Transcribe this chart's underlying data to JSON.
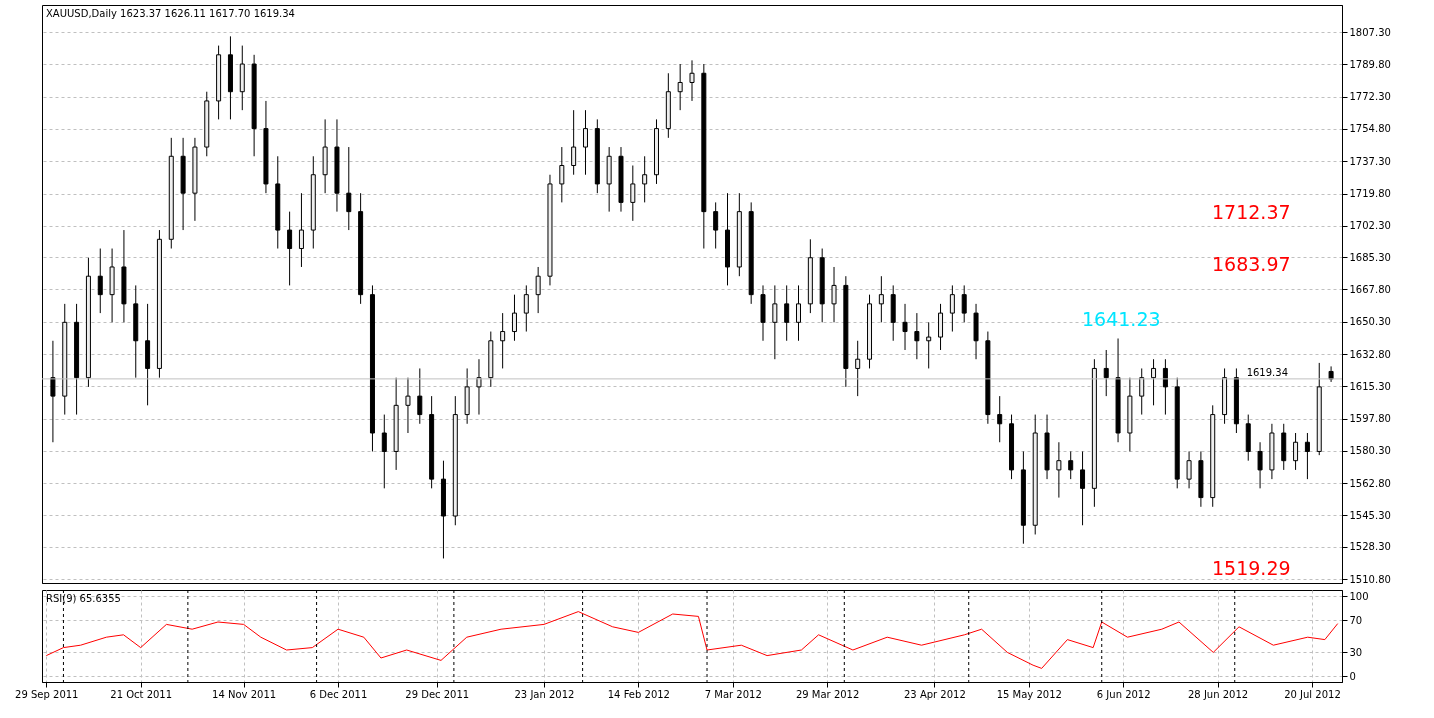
{
  "chart_data": [
    {
      "type": "candlestick",
      "title": "XAUUSD,Daily  1623.37 1626.11 1617.70 1619.34",
      "categories": [
        null,
        null,
        null,
        null,
        null,
        null,
        null,
        null,
        null,
        null,
        null,
        null,
        null,
        null,
        null,
        null,
        null,
        null,
        null,
        null,
        null,
        null,
        null,
        null,
        null,
        null,
        null,
        null,
        null,
        null,
        null,
        null,
        null,
        null,
        null,
        null,
        null,
        null,
        null,
        null,
        null,
        null,
        null,
        null,
        null,
        null,
        null,
        null,
        null,
        null,
        null,
        null,
        null,
        null,
        null,
        null,
        null,
        null,
        null,
        null,
        null,
        null,
        null,
        null,
        null,
        null,
        null,
        null,
        null,
        null,
        null,
        null,
        null,
        null,
        null,
        null,
        null,
        null,
        null,
        null,
        null,
        null,
        null,
        null,
        null,
        null,
        null,
        null,
        null,
        null,
        null,
        null,
        null,
        null,
        null,
        null,
        null,
        null,
        null,
        null,
        null,
        null,
        null,
        null,
        null,
        null,
        null,
        null,
        null
      ],
      "ohlc": [
        [
          1620,
          1640,
          1585,
          1610
        ],
        [
          1610,
          1660,
          1600,
          1650
        ],
        [
          1650,
          1660,
          1600,
          1620
        ],
        [
          1620,
          1685,
          1615,
          1675
        ],
        [
          1675,
          1690,
          1655,
          1665
        ],
        [
          1665,
          1690,
          1650,
          1680
        ],
        [
          1680,
          1700,
          1650,
          1660
        ],
        [
          1660,
          1670,
          1620,
          1640
        ],
        [
          1640,
          1660,
          1605,
          1625
        ],
        [
          1625,
          1700,
          1620,
          1695
        ],
        [
          1695,
          1750,
          1690,
          1740
        ],
        [
          1740,
          1750,
          1700,
          1720
        ],
        [
          1720,
          1750,
          1705,
          1745
        ],
        [
          1745,
          1775,
          1740,
          1770
        ],
        [
          1770,
          1800,
          1760,
          1795
        ],
        [
          1795,
          1805,
          1760,
          1775
        ],
        [
          1775,
          1800,
          1765,
          1790
        ],
        [
          1790,
          1795,
          1740,
          1755
        ],
        [
          1755,
          1770,
          1720,
          1725
        ],
        [
          1725,
          1740,
          1690,
          1700
        ],
        [
          1700,
          1710,
          1670,
          1690
        ],
        [
          1690,
          1720,
          1680,
          1700
        ],
        [
          1700,
          1740,
          1690,
          1730
        ],
        [
          1730,
          1760,
          1720,
          1745
        ],
        [
          1745,
          1760,
          1710,
          1720
        ],
        [
          1720,
          1745,
          1700,
          1710
        ],
        [
          1710,
          1720,
          1660,
          1665
        ],
        [
          1665,
          1670,
          1580,
          1590
        ],
        [
          1590,
          1600,
          1560,
          1580
        ],
        [
          1580,
          1620,
          1570,
          1605
        ],
        [
          1605,
          1620,
          1590,
          1610
        ],
        [
          1610,
          1625,
          1595,
          1600
        ],
        [
          1600,
          1610,
          1560,
          1565
        ],
        [
          1565,
          1575,
          1522,
          1545
        ],
        [
          1545,
          1610,
          1540,
          1600
        ],
        [
          1600,
          1625,
          1595,
          1615
        ],
        [
          1615,
          1630,
          1600,
          1620
        ],
        [
          1620,
          1645,
          1615,
          1640
        ],
        [
          1640,
          1655,
          1625,
          1645
        ],
        [
          1645,
          1665,
          1640,
          1655
        ],
        [
          1655,
          1670,
          1645,
          1665
        ],
        [
          1665,
          1680,
          1655,
          1675
        ],
        [
          1675,
          1730,
          1670,
          1725
        ],
        [
          1725,
          1745,
          1715,
          1735
        ],
        [
          1735,
          1765,
          1730,
          1745
        ],
        [
          1745,
          1765,
          1730,
          1755
        ],
        [
          1755,
          1760,
          1720,
          1725
        ],
        [
          1725,
          1745,
          1710,
          1740
        ],
        [
          1740,
          1745,
          1710,
          1715
        ],
        [
          1715,
          1735,
          1705,
          1725
        ],
        [
          1725,
          1740,
          1715,
          1730
        ],
        [
          1730,
          1760,
          1725,
          1755
        ],
        [
          1755,
          1785,
          1750,
          1775
        ],
        [
          1775,
          1790,
          1765,
          1780
        ],
        [
          1780,
          1792,
          1770,
          1785
        ],
        [
          1785,
          1790,
          1690,
          1710
        ],
        [
          1710,
          1715,
          1690,
          1700
        ],
        [
          1700,
          1720,
          1670,
          1680
        ],
        [
          1680,
          1720,
          1675,
          1710
        ],
        [
          1710,
          1715,
          1660,
          1665
        ],
        [
          1665,
          1670,
          1640,
          1650
        ],
        [
          1650,
          1670,
          1630,
          1660
        ],
        [
          1660,
          1670,
          1640,
          1650
        ],
        [
          1650,
          1670,
          1640,
          1660
        ],
        [
          1660,
          1695,
          1655,
          1685
        ],
        [
          1685,
          1690,
          1650,
          1660
        ],
        [
          1660,
          1680,
          1650,
          1670
        ],
        [
          1670,
          1675,
          1615,
          1625
        ],
        [
          1625,
          1640,
          1610,
          1630
        ],
        [
          1630,
          1665,
          1625,
          1660
        ],
        [
          1660,
          1675,
          1650,
          1665
        ],
        [
          1665,
          1670,
          1640,
          1650
        ],
        [
          1650,
          1660,
          1635,
          1645
        ],
        [
          1645,
          1655,
          1630,
          1640
        ],
        [
          1640,
          1650,
          1625,
          1642
        ],
        [
          1642,
          1660,
          1635,
          1655
        ],
        [
          1655,
          1670,
          1645,
          1665
        ],
        [
          1665,
          1670,
          1650,
          1655
        ],
        [
          1655,
          1660,
          1630,
          1640
        ],
        [
          1640,
          1645,
          1595,
          1600
        ],
        [
          1600,
          1610,
          1585,
          1595
        ],
        [
          1595,
          1600,
          1565,
          1570
        ],
        [
          1570,
          1580,
          1530,
          1540
        ],
        [
          1540,
          1600,
          1535,
          1590
        ],
        [
          1590,
          1600,
          1565,
          1570
        ],
        [
          1570,
          1585,
          1555,
          1575
        ],
        [
          1575,
          1580,
          1565,
          1570
        ],
        [
          1570,
          1580,
          1540,
          1560
        ],
        [
          1560,
          1630,
          1550,
          1625
        ],
        [
          1625,
          1635,
          1610,
          1620
        ],
        [
          1620,
          1641.23,
          1585,
          1590
        ],
        [
          1590,
          1620,
          1580,
          1610
        ],
        [
          1610,
          1625,
          1600,
          1620
        ],
        [
          1620,
          1630,
          1605,
          1625
        ],
        [
          1625,
          1630,
          1600,
          1615
        ],
        [
          1615,
          1620,
          1560,
          1565
        ],
        [
          1565,
          1580,
          1560,
          1575
        ],
        [
          1575,
          1580,
          1550,
          1555
        ],
        [
          1555,
          1605,
          1550,
          1600
        ],
        [
          1600,
          1625,
          1595,
          1620
        ],
        [
          1620,
          1625,
          1590,
          1595
        ],
        [
          1595,
          1600,
          1575,
          1580
        ],
        [
          1580,
          1585,
          1560,
          1570
        ],
        [
          1570,
          1595,
          1565,
          1590
        ],
        [
          1590,
          1595,
          1570,
          1575
        ],
        [
          1575,
          1590,
          1570,
          1585
        ],
        [
          1585,
          1590,
          1565,
          1580
        ],
        [
          1580,
          1628,
          1578,
          1615
        ],
        [
          1623.37,
          1626.11,
          1617.7,
          1619.34
        ]
      ],
      "ylim": [
        1508.7,
        1822
      ],
      "yticks": [
        {
          "value": 1510.8,
          "label": "1510.80"
        },
        {
          "value": 1528.3,
          "label": "1528.30"
        },
        {
          "value": 1545.3,
          "label": "1545.30"
        },
        {
          "value": 1562.8,
          "label": "1562.80"
        },
        {
          "value": 1580.3,
          "label": "1580.30"
        },
        {
          "value": 1597.8,
          "label": "1597.80"
        },
        {
          "value": 1615.3,
          "label": "1615.30"
        },
        {
          "value": 1632.8,
          "label": "1632.80"
        },
        {
          "value": 1650.3,
          "label": "1650.30"
        },
        {
          "value": 1667.8,
          "label": "1667.80"
        },
        {
          "value": 1685.3,
          "label": "1685.30"
        },
        {
          "value": 1702.3,
          "label": "1702.30"
        },
        {
          "value": 1719.8,
          "label": "1719.80"
        },
        {
          "value": 1737.3,
          "label": "1737.30"
        },
        {
          "value": 1754.8,
          "label": "1754.80"
        },
        {
          "value": 1772.3,
          "label": "1772.30"
        },
        {
          "value": 1789.8,
          "label": "1789.80"
        },
        {
          "value": 1807.3,
          "label": "1807.30"
        }
      ],
      "tick_labels": "y",
      "grid": "y",
      "ref_lines": [
        {
          "axis": "y",
          "value": 1619.34,
          "label": "1619.34",
          "color": "#c0c0c0",
          "line_style": "solid"
        }
      ],
      "annotations": [
        "1712.37",
        "1683.97",
        "1641.23",
        "1519.29"
      ]
    },
    {
      "type": "line",
      "title": "RSI(9) 65.6355",
      "series": [
        {
          "color": "#ff0000",
          "x": [
            "2011-09-29",
            "2011-10-03",
            "2011-10-07",
            "2011-10-13",
            "2011-10-17",
            "2011-10-21",
            "2011-10-27",
            "2011-11-02",
            "2011-11-08",
            "2011-11-14",
            "2011-11-18",
            "2011-11-24",
            "2011-11-30",
            "2011-12-06",
            "2011-12-12",
            "2011-12-16",
            "2011-12-22",
            "2011-12-30",
            "2012-01-05",
            "2012-01-13",
            "2012-01-23",
            "2012-01-31",
            "2012-02-08",
            "2012-02-14",
            "2012-02-22",
            "2012-02-28",
            "2012-03-01",
            "2012-03-09",
            "2012-03-15",
            "2012-03-23",
            "2012-03-27",
            "2012-04-04",
            "2012-04-12",
            "2012-04-20",
            "2012-04-30",
            "2012-05-04",
            "2012-05-10",
            "2012-05-16",
            "2012-05-18",
            "2012-05-24",
            "2012-05-30",
            "2012-06-01",
            "2012-06-07",
            "2012-06-15",
            "2012-06-19",
            "2012-06-27",
            "2012-07-03",
            "2012-07-11",
            "2012-07-19",
            "2012-07-23",
            "2012-07-26"
          ],
          "values": [
            26,
            36,
            39,
            49,
            52,
            36,
            65,
            59,
            68,
            65,
            49,
            33,
            36,
            59,
            49,
            23,
            33,
            20,
            49,
            59,
            65,
            81,
            62,
            55,
            78,
            75,
            33,
            39,
            26,
            33,
            52,
            33,
            49,
            39,
            52,
            59,
            30,
            14,
            10,
            46,
            36,
            68,
            49,
            59,
            68,
            30,
            62,
            39,
            49,
            46,
            66
          ]
        }
      ],
      "xlim": [
        "2011-09-28",
        "2012-07-27"
      ],
      "xticks": [
        {
          "value": "2011-09-29",
          "label": "29 Sep 2011"
        },
        {
          "value": "2011-10-21",
          "label": "21 Oct 2011"
        },
        {
          "value": "2011-11-14",
          "label": "14 Nov 2011"
        },
        {
          "value": "2011-12-06",
          "label": "6 Dec 2011"
        },
        {
          "value": "2011-12-29",
          "label": "29 Dec 2011"
        },
        {
          "value": "2012-01-23",
          "label": "23 Jan 2012"
        },
        {
          "value": "2012-02-14",
          "label": "14 Feb 2012"
        },
        {
          "value": "2012-03-07",
          "label": "7 Mar 2012"
        },
        {
          "value": "2012-03-29",
          "label": "29 Mar 2012"
        },
        {
          "value": "2012-04-23",
          "label": "23 Apr 2012"
        },
        {
          "value": "2012-05-15",
          "label": "15 May 2012"
        },
        {
          "value": "2012-06-06",
          "label": "6 Jun 2012"
        },
        {
          "value": "2012-06-28",
          "label": "28 Jun 2012"
        },
        {
          "value": "2012-07-20",
          "label": "20 Jul 2012"
        }
      ],
      "ylim": [
        -7,
        108
      ],
      "yticks": [
        0,
        30,
        70,
        100
      ],
      "grid": true,
      "ref_lines": [
        {
          "axis": "x",
          "value": "2011-10-03",
          "label": null,
          "color": "#000000",
          "line_style": "dotted"
        },
        {
          "axis": "x",
          "value": "2011-11-01",
          "label": null,
          "color": "#000000",
          "line_style": "dotted"
        },
        {
          "axis": "x",
          "value": "2011-12-01",
          "label": null,
          "color": "#000000",
          "line_style": "dotted"
        },
        {
          "axis": "x",
          "value": "2012-01-02",
          "label": null,
          "color": "#000000",
          "line_style": "dotted"
        },
        {
          "axis": "x",
          "value": "2012-02-01",
          "label": null,
          "color": "#000000",
          "line_style": "dotted"
        },
        {
          "axis": "x",
          "value": "2012-03-01",
          "label": null,
          "color": "#000000",
          "line_style": "dotted"
        },
        {
          "axis": "x",
          "value": "2012-04-02",
          "label": null,
          "color": "#000000",
          "line_style": "dotted"
        },
        {
          "axis": "x",
          "value": "2012-05-01",
          "label": null,
          "color": "#000000",
          "line_style": "dotted"
        },
        {
          "axis": "x",
          "value": "2012-06-01",
          "label": null,
          "color": "#000000",
          "line_style": "dotted"
        },
        {
          "axis": "x",
          "value": "2012-07-02",
          "label": null,
          "color": "#000000",
          "line_style": "dotted"
        }
      ]
    }
  ]
}
